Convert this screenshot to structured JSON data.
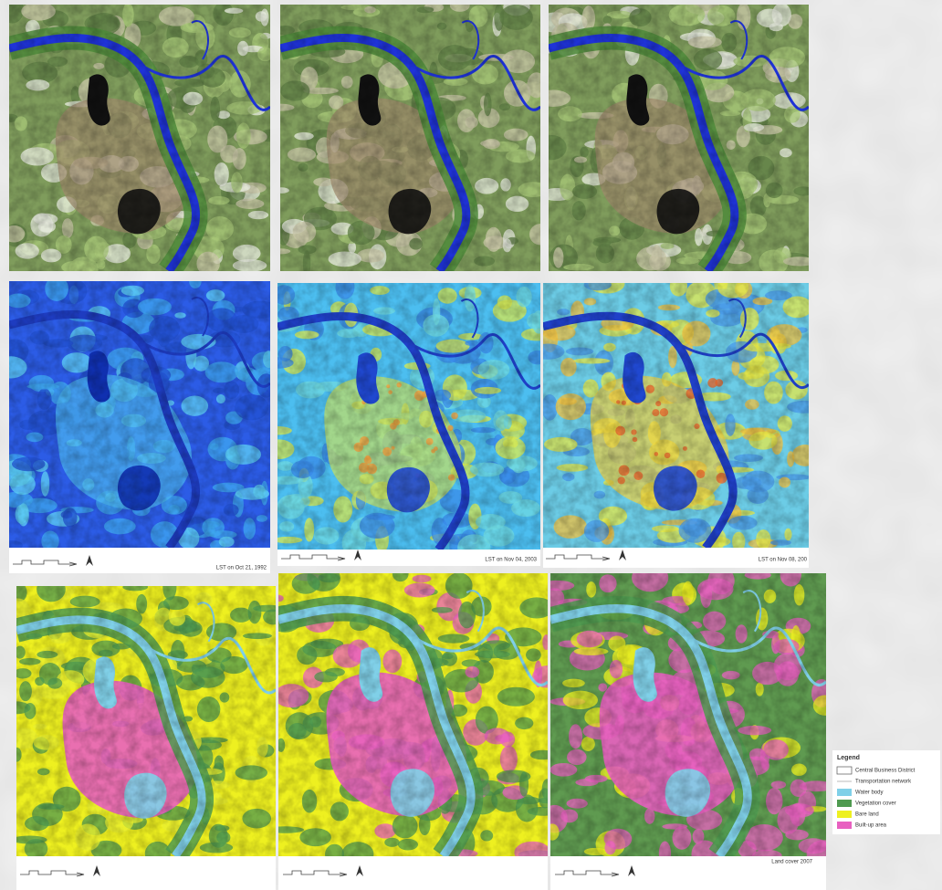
{
  "lst_captions": [
    "LST on Oct 21, 1992",
    "LST on Nov 04, 2003",
    "LST on Nov 08, 200"
  ],
  "land_cover_caption": "Land cover 2007",
  "legend": {
    "title": "Legend",
    "items": [
      "Central Business District",
      "Transportation network",
      "Water body",
      "Vegetation cover",
      "Bare land",
      "Built-up area"
    ]
  }
}
